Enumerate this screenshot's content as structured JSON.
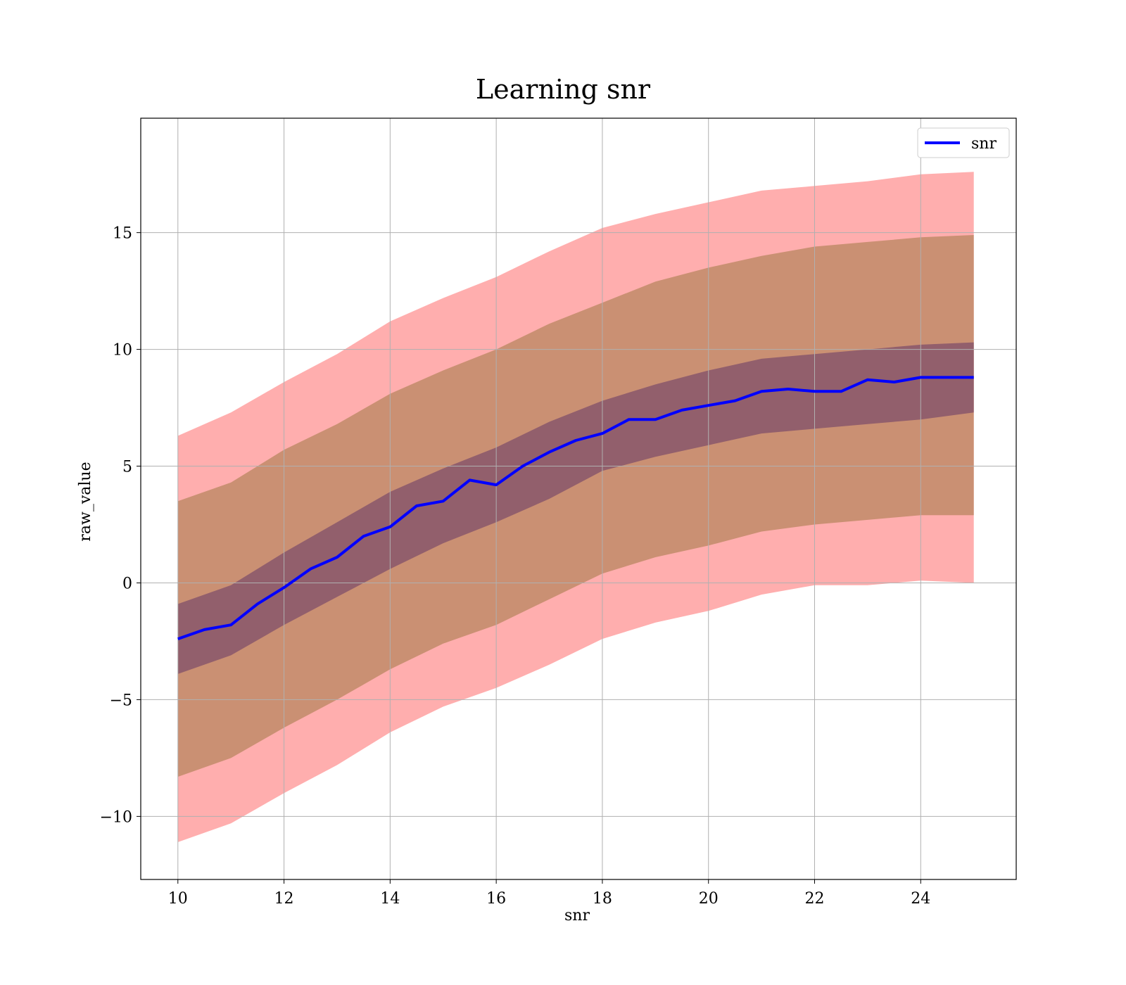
{
  "chart_data": {
    "type": "line",
    "title": "Learning snr",
    "xlabel": "snr",
    "ylabel": "raw_value",
    "xlim": [
      9.3,
      25.8
    ],
    "ylim": [
      -12.7,
      19.9
    ],
    "xticks": [
      10,
      12,
      14,
      16,
      18,
      20,
      22,
      24
    ],
    "yticks": [
      -10,
      -5,
      0,
      5,
      10,
      15
    ],
    "ytick_labels": [
      "−10",
      "−5",
      "0",
      "5",
      "10",
      "15"
    ],
    "grid": true,
    "legend": {
      "position": "top-right",
      "entries": [
        "snr"
      ]
    },
    "colors": {
      "line": "#0000ff",
      "band_outer": "#ff6b6b",
      "band_middle": "#b8865f",
      "band_inner": "#7a4a6a"
    },
    "series": [
      {
        "name": "snr",
        "x": [
          10,
          10.5,
          11,
          11.5,
          12,
          12.5,
          13,
          13.5,
          14,
          14.5,
          15,
          15.5,
          16,
          16.5,
          17,
          17.5,
          18,
          18.5,
          19,
          19.5,
          20,
          20.5,
          21,
          21.5,
          22,
          22.5,
          23,
          23.5,
          24,
          24.5,
          25
        ],
        "y": [
          -2.4,
          -2.0,
          -1.8,
          -0.9,
          -0.2,
          0.6,
          1.1,
          2.0,
          2.4,
          3.3,
          3.5,
          4.4,
          4.2,
          5.0,
          5.6,
          6.1,
          6.4,
          7.0,
          7.0,
          7.4,
          7.6,
          7.8,
          8.2,
          8.3,
          8.2,
          8.2,
          8.7,
          8.6,
          8.8,
          8.8,
          8.8
        ]
      }
    ],
    "bands": [
      {
        "level": "outer",
        "x": [
          10,
          11,
          12,
          13,
          14,
          15,
          16,
          17,
          18,
          19,
          20,
          21,
          22,
          23,
          24,
          25
        ],
        "lower": [
          -11.1,
          -10.3,
          -9.0,
          -7.8,
          -6.4,
          -5.3,
          -4.5,
          -3.5,
          -2.4,
          -1.7,
          -1.2,
          -0.5,
          -0.1,
          -0.1,
          0.1,
          0.0
        ],
        "upper": [
          6.3,
          7.3,
          8.6,
          9.8,
          11.2,
          12.2,
          13.1,
          14.2,
          15.2,
          15.8,
          16.3,
          16.8,
          17.0,
          17.2,
          17.5,
          17.6
        ]
      },
      {
        "level": "middle",
        "x": [
          10,
          11,
          12,
          13,
          14,
          15,
          16,
          17,
          18,
          19,
          20,
          21,
          22,
          23,
          24,
          25
        ],
        "lower": [
          -8.3,
          -7.5,
          -6.2,
          -5.0,
          -3.7,
          -2.6,
          -1.8,
          -0.7,
          0.4,
          1.1,
          1.6,
          2.2,
          2.5,
          2.7,
          2.9,
          2.9
        ],
        "upper": [
          3.5,
          4.3,
          5.7,
          6.8,
          8.1,
          9.1,
          10.0,
          11.1,
          12.0,
          12.9,
          13.5,
          14.0,
          14.4,
          14.6,
          14.8,
          14.9
        ]
      },
      {
        "level": "inner",
        "x": [
          10,
          11,
          12,
          13,
          14,
          15,
          16,
          17,
          18,
          19,
          20,
          21,
          22,
          23,
          24,
          25
        ],
        "lower": [
          -3.9,
          -3.1,
          -1.8,
          -0.6,
          0.6,
          1.7,
          2.6,
          3.6,
          4.8,
          5.4,
          5.9,
          6.4,
          6.6,
          6.8,
          7.0,
          7.3
        ],
        "upper": [
          -0.9,
          -0.1,
          1.3,
          2.6,
          3.9,
          4.9,
          5.8,
          6.9,
          7.8,
          8.5,
          9.1,
          9.6,
          9.8,
          10.0,
          10.2,
          10.3
        ]
      }
    ]
  }
}
